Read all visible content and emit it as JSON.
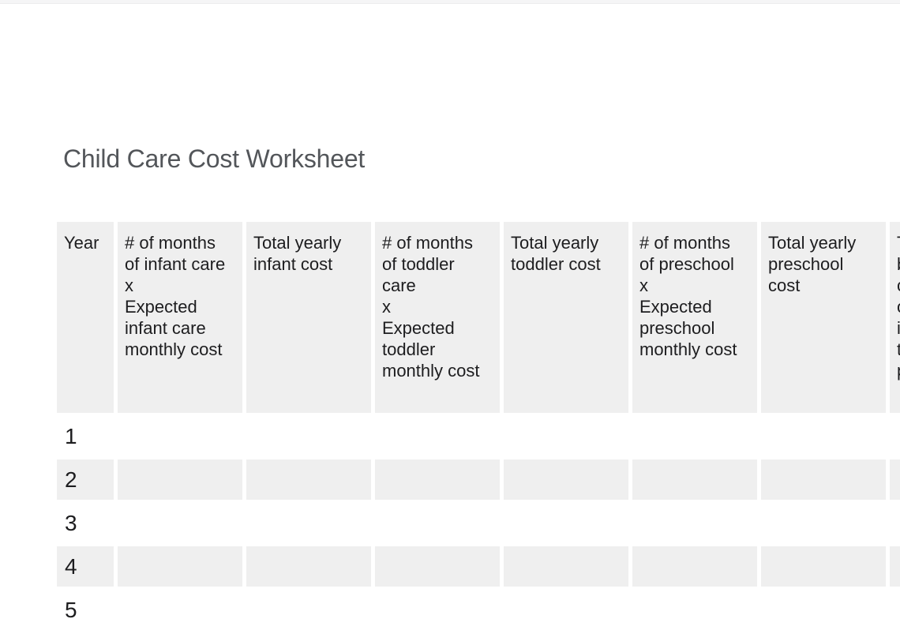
{
  "title": "Child Care Cost Worksheet",
  "table": {
    "headers": [
      "Year",
      "# of months\nof infant care\nx\nExpected\ninfant care\nmonthly cost",
      "Total yearly\ninfant cost",
      "# of months\nof toddler\ncare\nx\nExpected\ntoddler\nmonthly cost",
      "Total yearly\ntoddler cost",
      "# of months\nof preschool\nx\nExpected\npreschool\nmonthly cost",
      "Total yearly\npreschool\ncost",
      "Total\nbefore-tax\ncost\nof\ninfant,\ntoddler,\npreschool"
    ],
    "last_column_clipped": true,
    "rows": [
      {
        "year": "1"
      },
      {
        "year": "2"
      },
      {
        "year": "3"
      },
      {
        "year": "4"
      },
      {
        "year": "5"
      }
    ]
  },
  "colors": {
    "cell_background": "#efefef",
    "title_text": "#53565a",
    "body_text": "#1d1d1f",
    "top_bar": "#f5f5f6",
    "page_background": "#ffffff"
  }
}
